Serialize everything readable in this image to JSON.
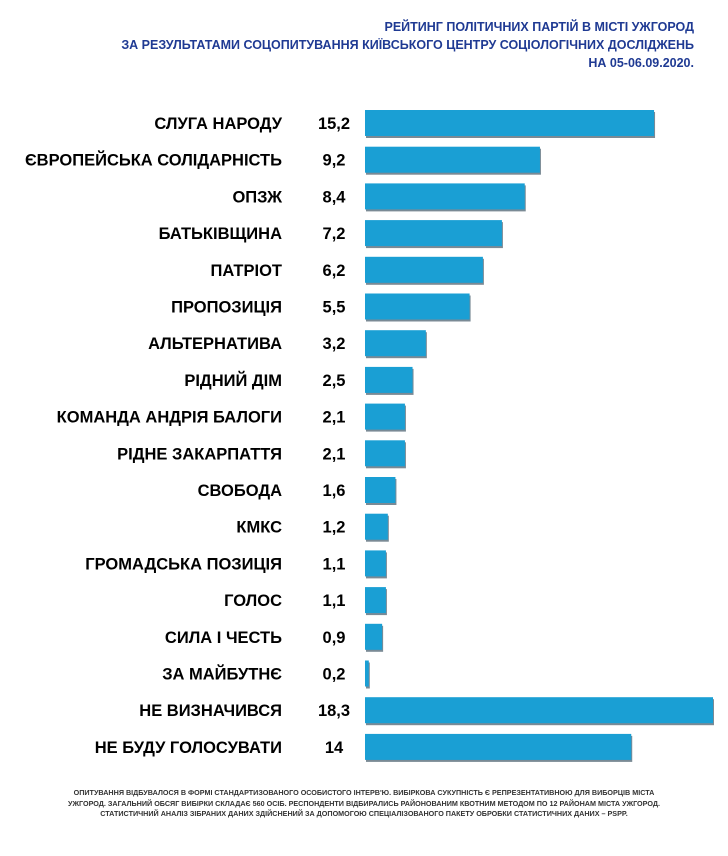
{
  "header": {
    "line1": "РЕЙТИНГ ПОЛІТИЧНИХ ПАРТІЙ В МІСТІ УЖГОРОД",
    "line2": "ЗА РЕЗУЛЬТАТАМИ СОЦОПИТУВАННЯ КИЇВСЬКОГО ЦЕНТРУ СОЦІОЛОГІЧНИХ  ДОСЛІДЖЕНЬ",
    "line3": "НА 05-06.09.2020."
  },
  "footnote": "ОПИТУВАННЯ ВІДБУВАЛОСЯ В ФОРМІ СТАНДАРТИЗОВАНОГО ОСОБИСТОГО ІНТЕРВ'Ю. ВИБІРКОВА СУКУПНІСТЬ Є РЕПРЕЗЕНТАТИВНОЮ ДЛЯ ВИБОРЦІВ МІСТА УЖГОРОД. ЗАГАЛЬНИЙ ОБСЯГ ВИБІРКИ СКЛАДАЄ 560 ОСІБ. РЕСПОНДЕНТИ ВІДБИРАЛИСЬ РАЙОНОВАНИМ КВОТНИМ МЕТОДОМ ПО 12 РАЙОНАМ МІСТА УЖГОРОД. СТАТИСТИЧНИЙ АНАЛІЗ ЗІБРАНИХ ДАНИХ ЗДІЙСНЕНИЙ ЗА ДОПОМОГОЮ СПЕЦІАЛІЗОВАНОГО ПАКЕТУ ОБРОБКИ СТАТИСТИЧНИХ ДАНИХ – PSPP.",
  "colors": {
    "bar": "#1a9fd4",
    "bar_edge": "#7a8a95",
    "title": "#1f3a93"
  },
  "chart_data": {
    "type": "bar",
    "orientation": "horizontal",
    "categories": [
      "СЛУГА НАРОДУ",
      "ЄВРОПЕЙСЬКА СОЛІДАРНІСТЬ",
      "ОПЗЖ",
      "БАТЬКІВЩИНА",
      "ПАТРІОТ",
      "ПРОПОЗИЦІЯ",
      "АЛЬТЕРНАТИВА",
      "РІДНИЙ ДІМ",
      "КОМАНДА АНДРІЯ БАЛОГИ",
      "РІДНЕ ЗАКАРПАТТЯ",
      "СВОБОДА",
      "КМКС",
      "ГРОМАДСЬКА ПОЗИЦІЯ",
      "ГОЛОС",
      "СИЛА І ЧЕСТЬ",
      "ЗА МАЙБУТНЄ",
      "НЕ ВИЗНАЧИВСЯ",
      "НЕ БУДУ ГОЛОСУВАТИ"
    ],
    "values": [
      15.2,
      9.2,
      8.4,
      7.2,
      6.2,
      5.5,
      3.2,
      2.5,
      2.1,
      2.1,
      1.6,
      1.2,
      1.1,
      1.1,
      0.9,
      0.2,
      18.3,
      14
    ],
    "value_labels": [
      "15,2",
      "9,2",
      "8,4",
      "7,2",
      "6,2",
      "5,5",
      "3,2",
      "2,5",
      "2,1",
      "2,1",
      "1,6",
      "1,2",
      "1,1",
      "1,1",
      "0,9",
      "0,2",
      "18,3",
      "14"
    ],
    "title": "",
    "xlabel": "",
    "ylabel": "",
    "xlim": [
      0,
      18.3
    ],
    "grid": false,
    "legend": "none"
  }
}
